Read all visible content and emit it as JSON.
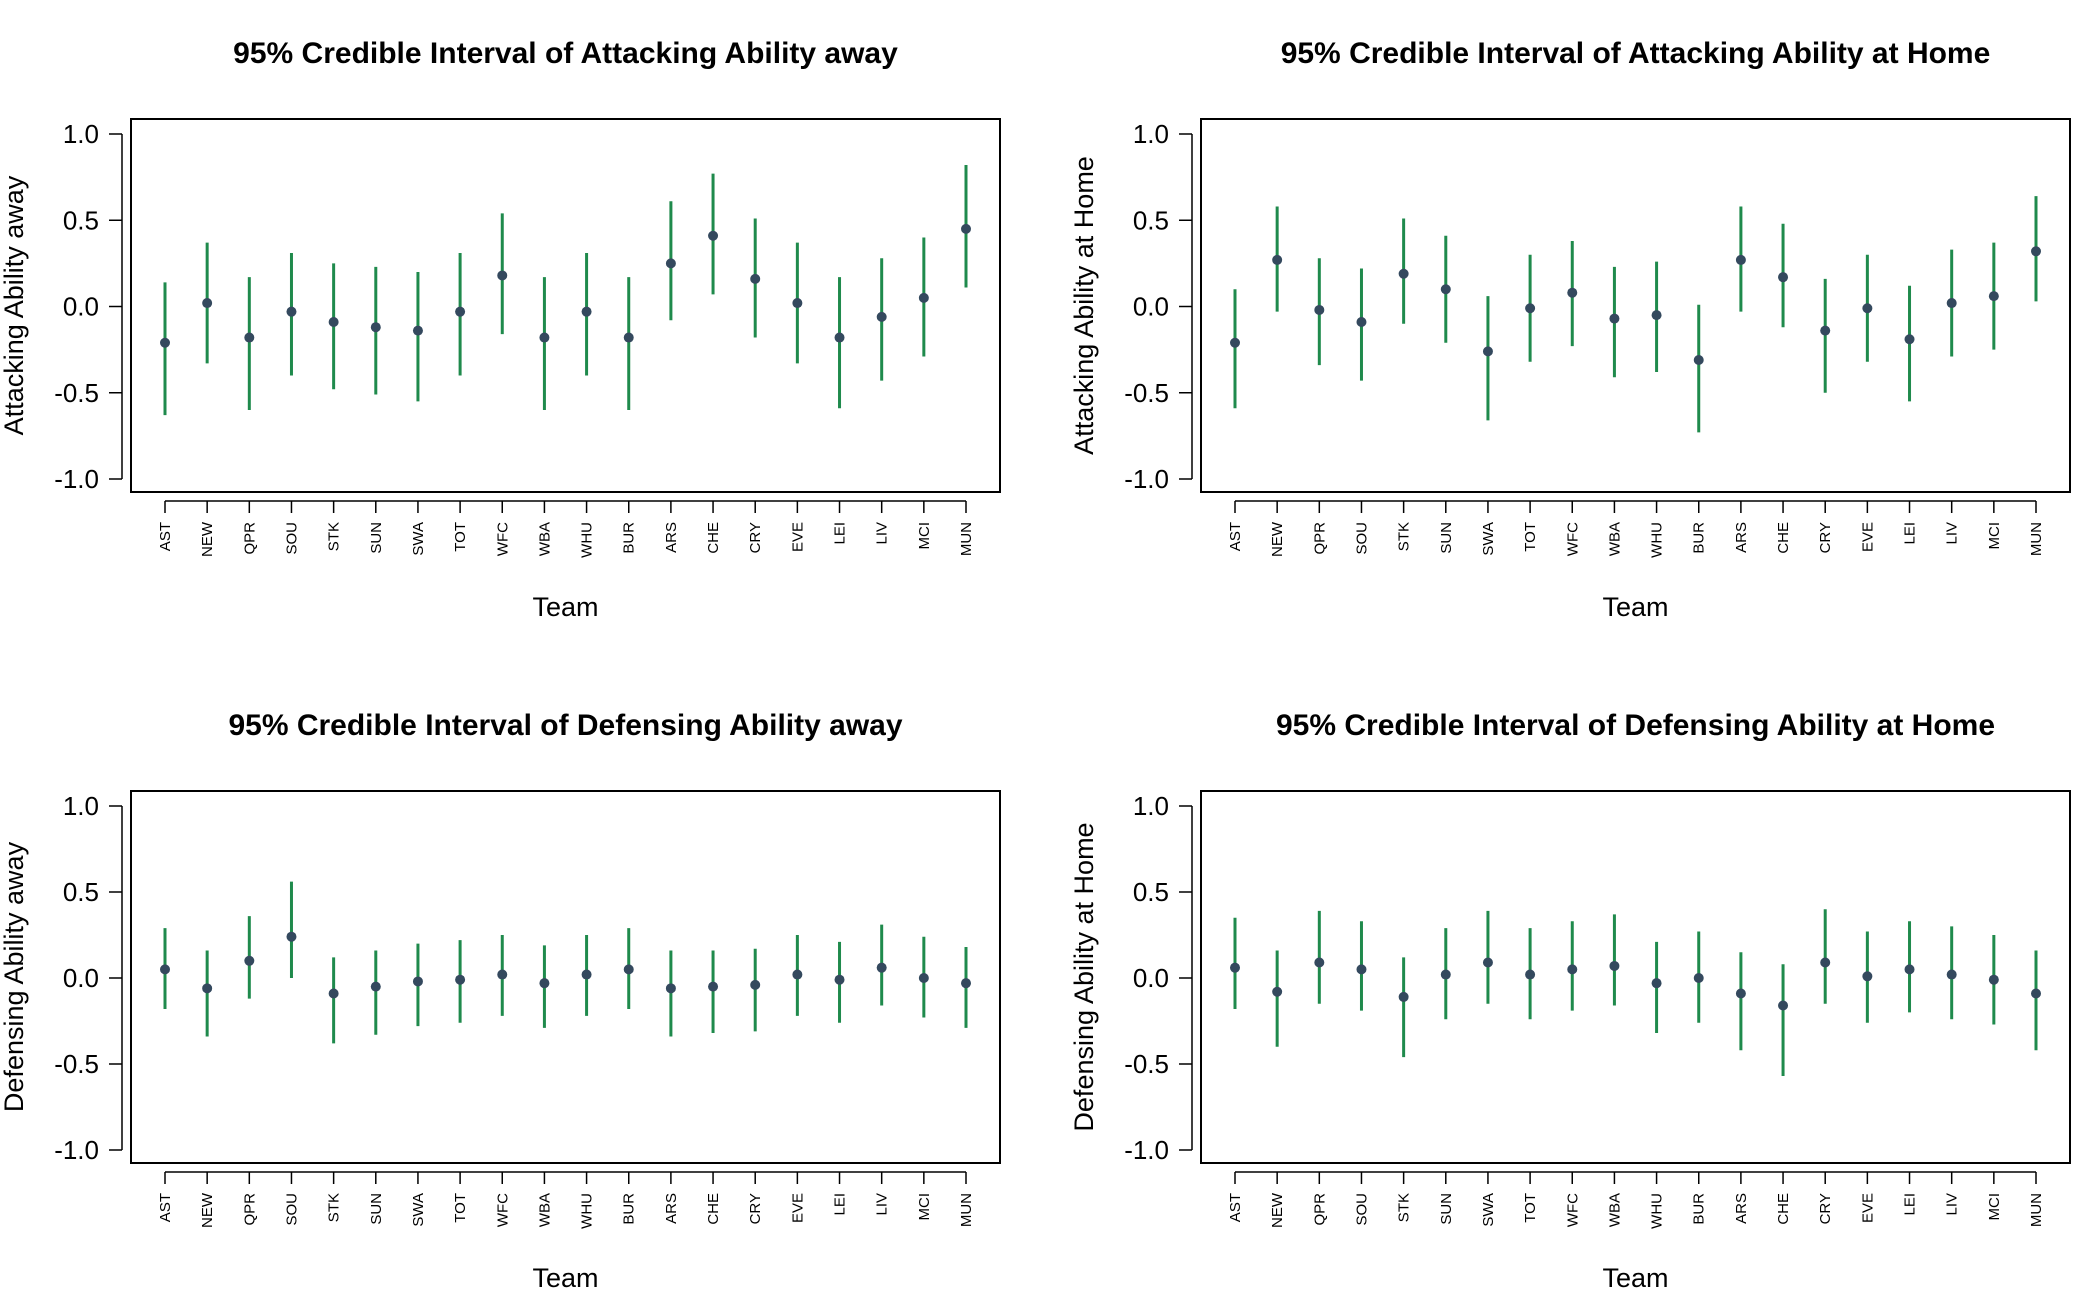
{
  "colors": {
    "interval": "#1f8a4c",
    "point": "#34495e",
    "axis": "#000000"
  },
  "chart_data": [
    {
      "type": "scatter",
      "title": "95% Credible Interval of Attacking Ability away",
      "xlabel": "Team",
      "ylabel": "Attacking Ability away",
      "ylim": [
        -1.0,
        1.0
      ],
      "yticks": [
        "-1.0",
        "-0.5",
        "0.0",
        "0.5",
        "1.0"
      ],
      "categories": [
        "AST",
        "NEW",
        "QPR",
        "SOU",
        "STK",
        "SUN",
        "SWA",
        "TOT",
        "WFC",
        "WBA",
        "WHU",
        "BUR",
        "ARS",
        "CHE",
        "CRY",
        "EVE",
        "LEI",
        "LIV",
        "MCI",
        "MUN"
      ],
      "mean": [
        -0.21,
        0.02,
        -0.18,
        -0.03,
        -0.09,
        -0.12,
        -0.14,
        -0.03,
        0.18,
        -0.18,
        -0.03,
        -0.18,
        0.25,
        0.41,
        0.16,
        0.02,
        -0.18,
        -0.06,
        0.05,
        0.45
      ],
      "lower": [
        -0.63,
        -0.33,
        -0.6,
        -0.4,
        -0.48,
        -0.51,
        -0.55,
        -0.4,
        -0.16,
        -0.6,
        -0.4,
        -0.6,
        -0.08,
        0.07,
        -0.18,
        -0.33,
        -0.59,
        -0.43,
        -0.29,
        0.11
      ],
      "upper": [
        0.14,
        0.37,
        0.17,
        0.31,
        0.25,
        0.23,
        0.2,
        0.31,
        0.54,
        0.17,
        0.31,
        0.17,
        0.61,
        0.77,
        0.51,
        0.37,
        0.17,
        0.28,
        0.4,
        0.82
      ],
      "grid": false,
      "legend": "none"
    },
    {
      "type": "scatter",
      "title": "95% Credible Interval of Attacking Ability at Home",
      "xlabel": "Team",
      "ylabel": "Attacking Ability at Home",
      "ylim": [
        -1.0,
        1.0
      ],
      "yticks": [
        "-1.0",
        "-0.5",
        "0.0",
        "0.5",
        "1.0"
      ],
      "categories": [
        "AST",
        "NEW",
        "QPR",
        "SOU",
        "STK",
        "SUN",
        "SWA",
        "TOT",
        "WFC",
        "WBA",
        "WHU",
        "BUR",
        "ARS",
        "CHE",
        "CRY",
        "EVE",
        "LEI",
        "LIV",
        "MCI",
        "MUN"
      ],
      "mean": [
        -0.21,
        0.27,
        -0.02,
        -0.09,
        0.19,
        0.1,
        -0.26,
        -0.01,
        0.08,
        -0.07,
        -0.05,
        -0.31,
        0.27,
        0.17,
        -0.14,
        -0.01,
        -0.19,
        0.02,
        0.06,
        0.32
      ],
      "lower": [
        -0.59,
        -0.03,
        -0.34,
        -0.43,
        -0.1,
        -0.21,
        -0.66,
        -0.32,
        -0.23,
        -0.41,
        -0.38,
        -0.73,
        -0.03,
        -0.12,
        -0.5,
        -0.32,
        -0.55,
        -0.29,
        -0.25,
        0.03
      ],
      "upper": [
        0.1,
        0.58,
        0.28,
        0.22,
        0.51,
        0.41,
        0.06,
        0.3,
        0.38,
        0.23,
        0.26,
        0.01,
        0.58,
        0.48,
        0.16,
        0.3,
        0.12,
        0.33,
        0.37,
        0.64
      ],
      "grid": false,
      "legend": "none"
    },
    {
      "type": "scatter",
      "title": "95% Credible Interval of Defensing Ability away",
      "xlabel": "Team",
      "ylabel": "Defensing Ability away",
      "ylim": [
        -1.0,
        1.0
      ],
      "yticks": [
        "-1.0",
        "-0.5",
        "0.0",
        "0.5",
        "1.0"
      ],
      "categories": [
        "AST",
        "NEW",
        "QPR",
        "SOU",
        "STK",
        "SUN",
        "SWA",
        "TOT",
        "WFC",
        "WBA",
        "WHU",
        "BUR",
        "ARS",
        "CHE",
        "CRY",
        "EVE",
        "LEI",
        "LIV",
        "MCI",
        "MUN"
      ],
      "mean": [
        0.05,
        -0.06,
        0.1,
        0.24,
        -0.09,
        -0.05,
        -0.02,
        -0.01,
        0.02,
        -0.03,
        0.02,
        0.05,
        -0.06,
        -0.05,
        -0.04,
        0.02,
        -0.01,
        0.06,
        0.0,
        -0.03
      ],
      "lower": [
        -0.18,
        -0.34,
        -0.12,
        0.0,
        -0.38,
        -0.33,
        -0.28,
        -0.26,
        -0.22,
        -0.29,
        -0.22,
        -0.18,
        -0.34,
        -0.32,
        -0.31,
        -0.22,
        -0.26,
        -0.16,
        -0.23,
        -0.29
      ],
      "upper": [
        0.29,
        0.16,
        0.36,
        0.56,
        0.12,
        0.16,
        0.2,
        0.22,
        0.25,
        0.19,
        0.25,
        0.29,
        0.16,
        0.16,
        0.17,
        0.25,
        0.21,
        0.31,
        0.24,
        0.18
      ],
      "grid": false,
      "legend": "none"
    },
    {
      "type": "scatter",
      "title": "95% Credible Interval of Defensing Ability at Home",
      "xlabel": "Team",
      "ylabel": "Defensing Ability at Home",
      "ylim": [
        -1.0,
        1.0
      ],
      "yticks": [
        "-1.0",
        "-0.5",
        "0.0",
        "0.5",
        "1.0"
      ],
      "categories": [
        "AST",
        "NEW",
        "QPR",
        "SOU",
        "STK",
        "SUN",
        "SWA",
        "TOT",
        "WFC",
        "WBA",
        "WHU",
        "BUR",
        "ARS",
        "CHE",
        "CRY",
        "EVE",
        "LEI",
        "LIV",
        "MCI",
        "MUN"
      ],
      "mean": [
        0.06,
        -0.08,
        0.09,
        0.05,
        -0.11,
        0.02,
        0.09,
        0.02,
        0.05,
        0.07,
        -0.03,
        0.0,
        -0.09,
        -0.16,
        0.09,
        0.01,
        0.05,
        0.02,
        -0.01,
        -0.09
      ],
      "lower": [
        -0.18,
        -0.4,
        -0.15,
        -0.19,
        -0.46,
        -0.24,
        -0.15,
        -0.24,
        -0.19,
        -0.16,
        -0.32,
        -0.26,
        -0.42,
        -0.57,
        -0.15,
        -0.26,
        -0.2,
        -0.24,
        -0.27,
        -0.42
      ],
      "upper": [
        0.35,
        0.16,
        0.39,
        0.33,
        0.12,
        0.29,
        0.39,
        0.29,
        0.33,
        0.37,
        0.21,
        0.27,
        0.15,
        0.08,
        0.4,
        0.27,
        0.33,
        0.3,
        0.25,
        0.16
      ],
      "grid": false,
      "legend": "none"
    }
  ]
}
